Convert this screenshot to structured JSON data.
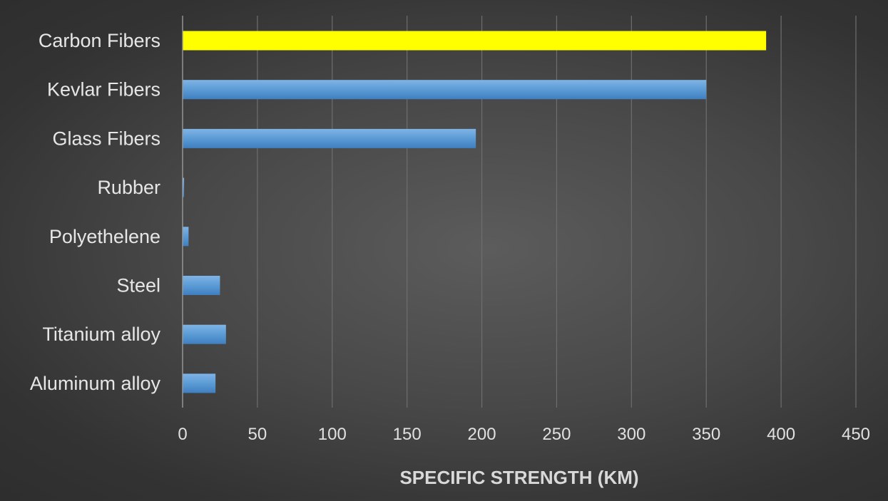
{
  "chart_data": {
    "type": "bar",
    "orientation": "horizontal",
    "categories": [
      "Carbon Fibers",
      "Kevlar Fibers",
      "Glass Fibers",
      "Rubber",
      "Polyethelene",
      "Steel",
      "Titanium alloy",
      "Aluminum alloy"
    ],
    "values": [
      390,
      350,
      196,
      1,
      4,
      25,
      29,
      22
    ],
    "bar_colors": [
      "#ffff00",
      "#5b9bd5",
      "#5b9bd5",
      "#5b9bd5",
      "#5b9bd5",
      "#5b9bd5",
      "#5b9bd5",
      "#5b9bd5"
    ],
    "title": "",
    "xlabel": "SPECIFIC STRENGTH (KM)",
    "ylabel": "",
    "xlim": [
      0,
      450
    ],
    "x_ticks": [
      0,
      50,
      100,
      150,
      200,
      250,
      300,
      350,
      400,
      450
    ],
    "grid": "vertical",
    "legend": "none",
    "colors": {
      "highlight": "#ffff00",
      "bar": "#5b9bd5",
      "background": "#4a4a4a"
    }
  }
}
